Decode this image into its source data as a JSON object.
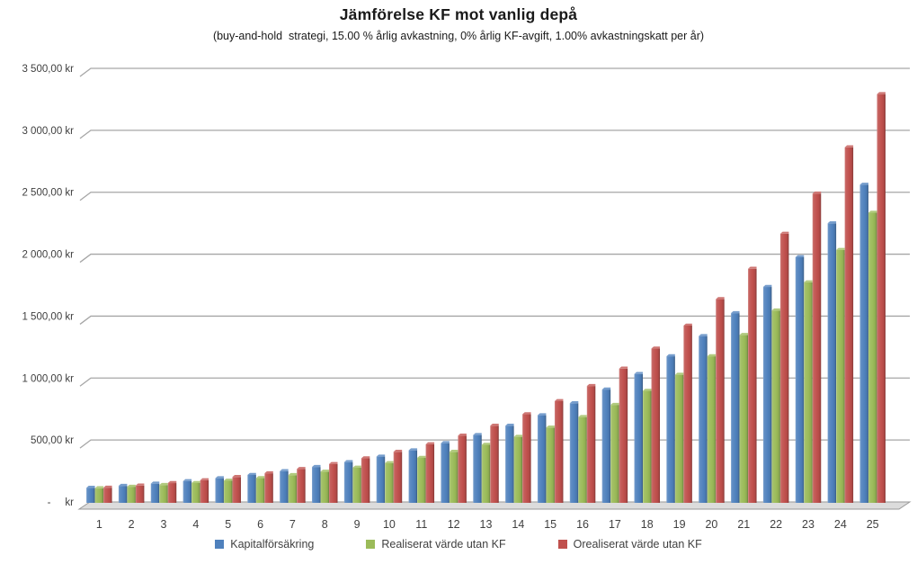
{
  "chart_data": {
    "type": "bar",
    "style": "excel-3d-clustered-column",
    "title": "Jämförelse KF mot vanlig depå",
    "subtitle": "(buy-and-hold  strategi, 15.00 % årlig avkastning, 0% årlig KF-avgift, 1.00% avkastningskatt per år)",
    "categories": [
      "1",
      "2",
      "3",
      "4",
      "5",
      "6",
      "7",
      "8",
      "9",
      "10",
      "11",
      "12",
      "13",
      "14",
      "15",
      "16",
      "17",
      "18",
      "19",
      "20",
      "21",
      "22",
      "23",
      "24",
      "25"
    ],
    "xlabel": "",
    "ylabel": "",
    "grid": true,
    "legend_position": "bottom",
    "y_axis": {
      "unit": "kr",
      "min": 0,
      "max": 3500,
      "step": 500,
      "tick_labels": [
        "-     kr",
        "500,00 kr",
        "1 000,00 kr",
        "1 500,00 kr",
        "2 000,00 kr",
        "2 500,00 kr",
        "3 000,00 kr",
        "3 500,00 kr"
      ]
    },
    "series": [
      {
        "name": "Kapitalförsäkring",
        "color": "#4F81BD",
        "values": [
          113.85,
          129.62,
          147.57,
          168.01,
          191.28,
          217.77,
          247.93,
          282.27,
          321.36,
          365.87,
          416.55,
          474.24,
          539.92,
          614.7,
          699.84,
          796.76,
          907.11,
          1032.75,
          1175.78,
          1338.63,
          1524.03,
          1735.11,
          1975.42,
          2249.04,
          2560.54
        ]
      },
      {
        "name": "Realiserat värde utan KF",
        "color": "#9BBB59",
        "values": [
          110.5,
          122.58,
          136.46,
          152.43,
          170.8,
          191.91,
          216.2,
          244.13,
          276.25,
          313.19,
          355.67,
          404.52,
          460.7,
          525.3,
          599.59,
          685.03,
          783.29,
          896.35,
          1026.3,
          1175.66,
          1347.51,
          1545.13,
          1772.4,
          2033.76,
          2334.33
        ]
      },
      {
        "name": "Orealiserat värde utan KF",
        "color": "#C0504D",
        "values": [
          115.0,
          132.25,
          152.09,
          174.9,
          201.14,
          231.31,
          266.0,
          305.9,
          351.79,
          404.56,
          465.24,
          535.03,
          615.28,
          707.57,
          813.71,
          935.76,
          1076.13,
          1237.65,
          1423.29,
          1636.65,
          1882.15,
          2164.47,
          2489.15,
          2862.52,
          3291.9
        ]
      }
    ],
    "gridline_color": "#A6A6A6",
    "floor_color": "#DCDCDC",
    "floor_edge_color": "#999999"
  }
}
